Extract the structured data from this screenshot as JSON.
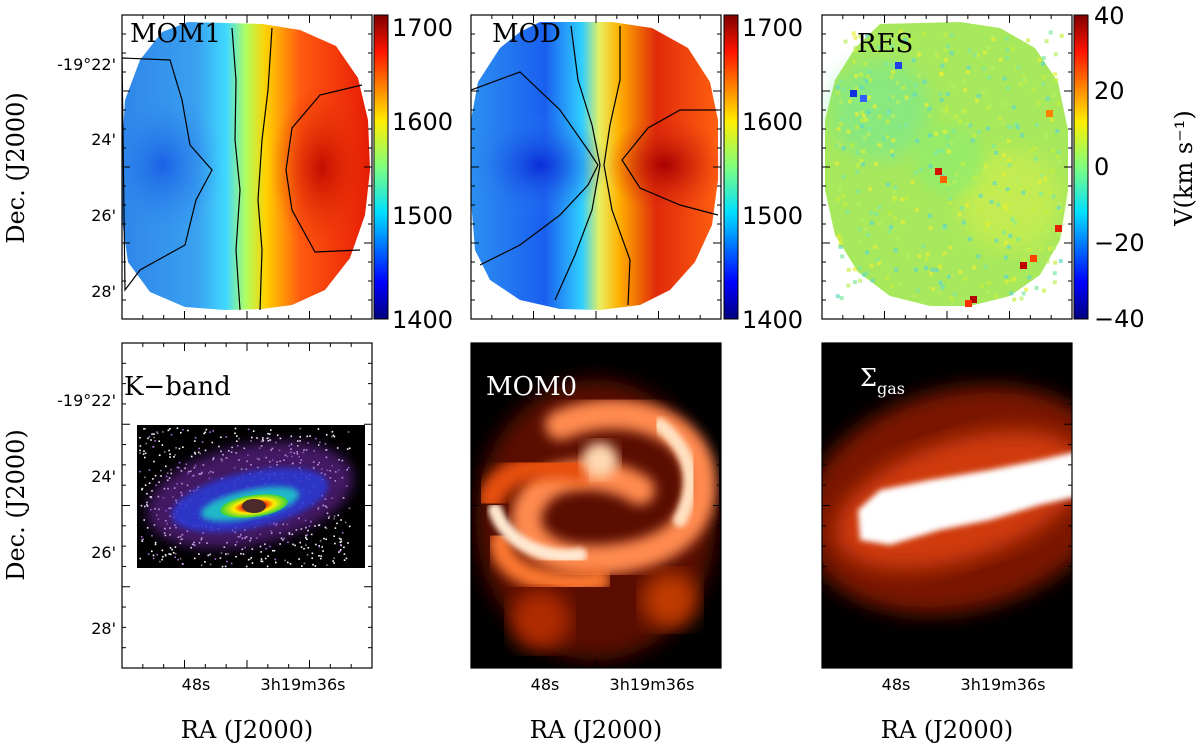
{
  "figure": {
    "ylabel": "Dec. (J2000)",
    "xlabel": "RA (J2000)",
    "dec_ticks": [
      "-19°22'",
      "24'",
      "26'",
      "28'"
    ],
    "ra_ticks": [
      "48s",
      "3h19m36s"
    ]
  },
  "chart_data": [
    {
      "type": "heatmap",
      "title": "MOM1",
      "colormap": "jet",
      "colorbar": {
        "range": [
          1400,
          1700
        ],
        "ticks": [
          "1700",
          "1600",
          "1500",
          "1400"
        ]
      },
      "contours": true
    },
    {
      "type": "heatmap",
      "title": "MOD",
      "colormap": "jet",
      "colorbar": {
        "range": [
          1400,
          1700
        ],
        "ticks": [
          "1700",
          "1600",
          "1500",
          "1400"
        ]
      },
      "contours": true
    },
    {
      "type": "heatmap",
      "title": "RES",
      "colormap": "jet",
      "colorbar": {
        "range": [
          -40,
          40
        ],
        "ticks": [
          "40",
          "20",
          "0",
          "−20",
          "−40"
        ],
        "label": "V(km s⁻¹)"
      }
    },
    {
      "type": "heatmap",
      "title": "K−band",
      "colormap": "rainbow"
    },
    {
      "type": "heatmap",
      "title": "MOM0",
      "colormap": "hot"
    },
    {
      "type": "heatmap",
      "title_main": "Σ",
      "title_sub": "gas",
      "colormap": "hot"
    }
  ]
}
